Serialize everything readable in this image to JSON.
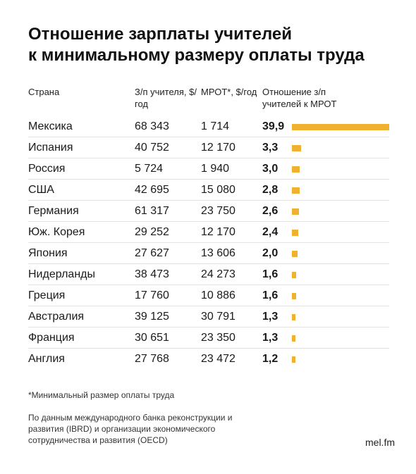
{
  "title_line1": "Отношение зарплаты учителей",
  "title_line2": "к минимальному размеру оплаты труда",
  "headers": {
    "country": "Страна",
    "salary": "З/п учителя, $/год",
    "mrot": "МРОТ*, $/год",
    "ratio": "Отношение з/п учителей к МРОТ"
  },
  "footnote": "*Минимальный размер оплаты труда",
  "source": "По данным международного банка реконструкции и развития (IBRD) и организации экономического сотрудничества и развития (OECD)",
  "brand": "mel.fm",
  "colors": {
    "bar": "#f0b030"
  },
  "chart_data": {
    "type": "table",
    "columns": [
      "Страна",
      "З/п учителя, $/год",
      "МРОТ*, $/год",
      "Отношение з/п учителей к МРОТ"
    ],
    "bar_max": 39.9,
    "rows": [
      {
        "country": "Мексика",
        "salary": "68 343",
        "mrot": "1 714",
        "ratio": "39,9",
        "value": 39.9
      },
      {
        "country": "Испания",
        "salary": "40 752",
        "mrot": "12 170",
        "ratio": "3,3",
        "value": 3.3
      },
      {
        "country": "Россия",
        "salary": "5 724",
        "mrot": "1 940",
        "ratio": "3,0",
        "value": 3.0
      },
      {
        "country": "США",
        "salary": "42 695",
        "mrot": "15 080",
        "ratio": "2,8",
        "value": 2.8
      },
      {
        "country": "Германия",
        "salary": "61 317",
        "mrot": "23 750",
        "ratio": "2,6",
        "value": 2.6
      },
      {
        "country": "Юж. Корея",
        "salary": "29 252",
        "mrot": "12 170",
        "ratio": "2,4",
        "value": 2.4
      },
      {
        "country": "Япония",
        "salary": "27 627",
        "mrot": "13 606",
        "ratio": "2,0",
        "value": 2.0
      },
      {
        "country": "Нидерланды",
        "salary": "38 473",
        "mrot": "24 273",
        "ratio": "1,6",
        "value": 1.6
      },
      {
        "country": "Греция",
        "salary": "17 760",
        "mrot": "10 886",
        "ratio": "1,6",
        "value": 1.6
      },
      {
        "country": "Австралия",
        "salary": "39 125",
        "mrot": "30 791",
        "ratio": "1,3",
        "value": 1.3
      },
      {
        "country": "Франция",
        "salary": "30 651",
        "mrot": "23 350",
        "ratio": "1,3",
        "value": 1.3
      },
      {
        "country": "Англия",
        "salary": "27 768",
        "mrot": "23 472",
        "ratio": "1,2",
        "value": 1.2
      }
    ]
  }
}
